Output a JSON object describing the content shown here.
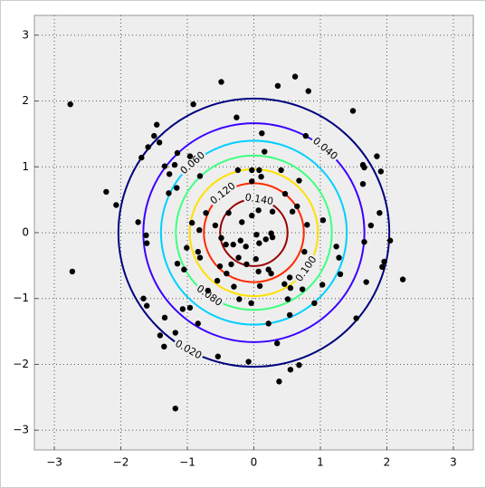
{
  "chart_data": {
    "type": "contour",
    "xlim": [
      -3.3,
      3.3
    ],
    "ylim": [
      -3.3,
      3.3
    ],
    "xticks": [
      {
        "value": -3,
        "label": "−3"
      },
      {
        "value": -2,
        "label": "−2"
      },
      {
        "value": -1,
        "label": "−1"
      },
      0,
      1,
      2,
      3
    ],
    "yticks": [
      {
        "value": -3,
        "label": "−3"
      },
      {
        "value": -2,
        "label": "−2"
      },
      {
        "value": -1,
        "label": "−1"
      },
      0,
      1,
      2,
      3
    ],
    "grid": true,
    "contours": {
      "levels": [
        0.02,
        0.04,
        0.06,
        0.08,
        0.1,
        0.12,
        0.14
      ],
      "value_labels": [
        "0.020",
        "0.040",
        "0.060",
        "0.080",
        "0.100",
        "0.120",
        "0.140"
      ],
      "colors": [
        "#00007f",
        "#3a00ff",
        "#00d0ff",
        "#3fff80",
        "#ffe000",
        "#ff2a00",
        "#9a0000"
      ]
    },
    "points": {
      "color": "#000000",
      "x": [
        -2.76,
        -2.73,
        -2.22,
        -2.07,
        -1.69,
        -1.59,
        -1.46,
        -1.42,
        -1.5,
        -1.74,
        -1.62,
        -1.61,
        -1.66,
        -1.61,
        -1.41,
        -1.35,
        -1.34,
        -1.18,
        -1.18,
        -1.28,
        -1.34,
        -1.27,
        -1.16,
        -1.19,
        -1.15,
        -0.96,
        -0.81,
        -0.93,
        -0.82,
        -1.01,
        -0.81,
        -0.84,
        -1.15,
        -1.05,
        -1.07,
        -0.84,
        -0.96,
        -0.69,
        -0.55,
        -0.51,
        -0.41,
        -0.3,
        -0.22,
        -0.04,
        0.09,
        0.26,
        0.22,
        0.46,
        0.55,
        0.73,
        0.54,
        0.22,
        0.35,
        0.55,
        0.68,
        0.38,
        -0.08,
        -0.54,
        0.07,
        0.03,
        -0.11,
        -0.23,
        -0.34,
        -0.49,
        -0.42,
        -0.58,
        -0.72,
        -0.38,
        -0.31,
        -0.2,
        -0.12,
        0.08,
        0.18,
        0.28,
        0.26,
        0.04,
        0.28,
        0.07,
        -0.03,
        -0.18,
        -0.03,
        0.11,
        -0.03,
        -0.24,
        0.08,
        0.16,
        0.12,
        -0.26,
        -0.49,
        0.36,
        0.62,
        0.82,
        0.68,
        0.65,
        0.58,
        1.04,
        0.8,
        0.76,
        1.24,
        1.28,
        1.3,
        1.03,
        0.91,
        0.54,
        0.51,
        1.54,
        1.69,
        1.66,
        1.76,
        1.89,
        2.05,
        1.96,
        1.93,
        2.24,
        1.85,
        1.64,
        1.66,
        1.91,
        1.64,
        1.49,
        0.78,
        -0.91,
        0.41,
        0.47
      ],
      "y": [
        1.95,
        -0.59,
        0.62,
        0.42,
        1.14,
        1.3,
        1.64,
        1.37,
        1.47,
        0.16,
        -0.04,
        -0.16,
        -1.0,
        -1.11,
        -1.56,
        -1.73,
        -1.29,
        -1.52,
        -2.67,
        0.6,
        1.01,
        0.89,
        0.68,
        1.03,
        1.21,
        1.16,
        0.86,
        0.15,
        0.04,
        -0.23,
        -0.38,
        -0.29,
        -0.47,
        -0.56,
        -1.16,
        -1.38,
        -1.14,
        -0.88,
        -0.73,
        -0.51,
        -0.62,
        -0.82,
        -1.01,
        -1.07,
        -0.81,
        -0.62,
        -0.56,
        -0.78,
        -0.84,
        -0.86,
        -0.68,
        -1.38,
        -1.68,
        -2.08,
        -2.01,
        -2.26,
        -1.96,
        -1.88,
        -0.59,
        -0.4,
        -0.48,
        -0.38,
        -0.48,
        -0.08,
        -0.18,
        0.11,
        0.3,
        0.3,
        -0.18,
        -0.12,
        -0.21,
        -0.16,
        -0.1,
        -0.07,
        -0.01,
        -0.03,
        0.32,
        0.34,
        0.26,
        0.16,
        0.78,
        0.85,
        0.95,
        0.95,
        0.95,
        1.23,
        1.51,
        1.75,
        2.29,
        2.23,
        2.37,
        2.15,
        0.79,
        0.4,
        0.32,
        0.19,
        0.12,
        -0.29,
        -0.21,
        -0.38,
        -0.63,
        -0.79,
        -1.07,
        -1.25,
        -1.01,
        -1.3,
        -0.75,
        -0.14,
        0.11,
        0.3,
        -0.12,
        -0.44,
        -0.52,
        -0.71,
        1.16,
        1.03,
        0.99,
        0.93,
        0.74,
        1.85,
        1.47,
        1.95,
        0.95,
        0.59
      ]
    }
  }
}
